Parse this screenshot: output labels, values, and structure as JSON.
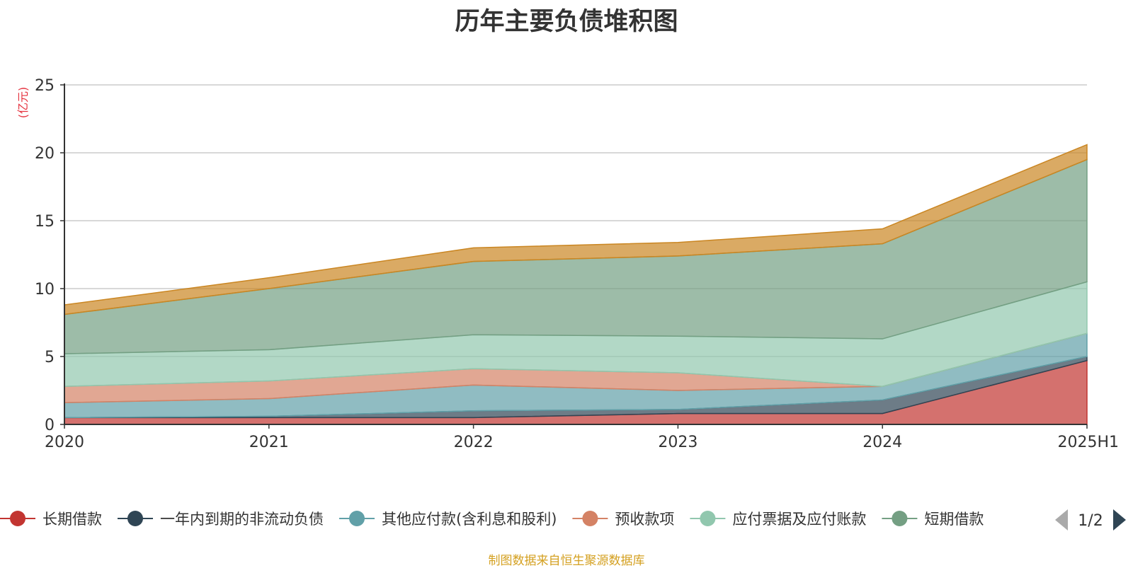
{
  "chart_data": {
    "type": "area",
    "stacked": true,
    "title": "历年主要负债堆积图",
    "unit_label": "(亿元)",
    "categories": [
      "2020",
      "2021",
      "2022",
      "2023",
      "2024",
      "2025H1"
    ],
    "ylim": [
      0,
      25
    ],
    "yticks": [
      0,
      5,
      10,
      15,
      20,
      25
    ],
    "grid": true,
    "legend_position": "bottom",
    "legend_page": "1/2",
    "series": [
      {
        "name": "长期借款",
        "color": "#c23531",
        "values": [
          0.5,
          0.5,
          0.5,
          0.8,
          0.8,
          4.7
        ]
      },
      {
        "name": "一年内到期的非流动负债",
        "color": "#2f4554",
        "values": [
          0.0,
          0.1,
          0.5,
          0.3,
          1.0,
          0.3
        ]
      },
      {
        "name": "其他应付款(含利息和股利)",
        "color": "#61a0a8",
        "values": [
          1.1,
          1.3,
          1.9,
          1.4,
          1.0,
          1.7
        ]
      },
      {
        "name": "预收款项",
        "color": "#d48265",
        "values": [
          1.2,
          1.3,
          1.2,
          1.3,
          0.0,
          0.0
        ]
      },
      {
        "name": "应付票据及应付账款",
        "color": "#91c7ae",
        "values": [
          2.4,
          2.3,
          2.5,
          2.7,
          3.5,
          3.8
        ]
      },
      {
        "name": "短期借款",
        "color": "#749f83",
        "values": [
          2.9,
          4.5,
          5.4,
          5.9,
          7.0,
          9.0
        ]
      },
      {
        "name": "",
        "color": "#ca8622",
        "values": [
          0.7,
          0.8,
          1.0,
          1.0,
          1.1,
          1.1
        ]
      }
    ],
    "source_note": "制图数据来自恒生聚源数据库"
  }
}
